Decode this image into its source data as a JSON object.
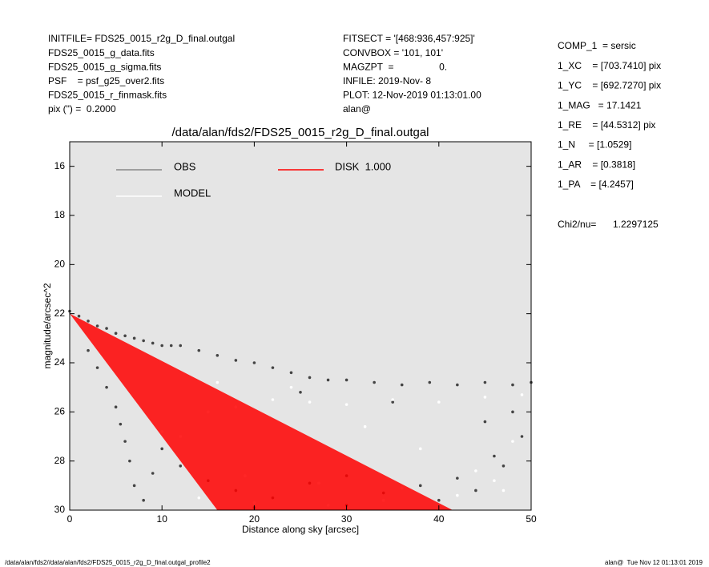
{
  "header": {
    "left": [
      "INITFILE= FDS25_0015_r2g_D_final.outgal",
      "FDS25_0015_g_data.fits",
      "FDS25_0015_g_sigma.fits",
      "PSF    = psf_g25_over2.fits",
      "FDS25_0015_r_finmask.fits",
      "pix (\") =  0.2000"
    ],
    "middle": [
      "FITSECT = '[468:936,457:925]'",
      "CONVBOX = '101, 101'",
      "MAGZPT  =                 0.",
      "INFILE: 2019-Nov- 8",
      "PLOT: 12-Nov-2019 01:13:01.00",
      "alan@"
    ],
    "right": [
      "COMP_1  = sersic",
      "1_XC    = [703.7410] pix",
      "1_YC    = [692.7270] pix",
      "1_MAG   = 17.1421",
      "1_RE    = [44.5312] pix",
      "1_N     = [1.0529]",
      "1_AR    = [0.3818]",
      "1_PA    = [4.2457]"
    ],
    "chi_label": "Chi2/nu=",
    "chi_value": "1.2297125"
  },
  "footer": {
    "left": "/data/alan/fds2//data/alan/fds2/FDS25_0015_r2g_D_final.outgal_profile2",
    "right": "alan@  Tue Nov 12 01:13:01 2019"
  },
  "chart_data": {
    "type": "scatter",
    "title": "/data/alan/fds2/FDS25_0015_r2g_D_final.outgal",
    "x_label": "Distance along sky [arcsec]",
    "y_label": "magnitude/arcsec^2",
    "xlim": [
      0,
      50
    ],
    "ylim": [
      30,
      15
    ],
    "xticks": [
      0,
      10,
      20,
      30,
      40,
      50
    ],
    "yticks": [
      16,
      18,
      20,
      22,
      24,
      26,
      28,
      30
    ],
    "background": "#e5e5e5",
    "series": [
      {
        "name": "OBS",
        "color": "#444444",
        "x": [
          0,
          1,
          2,
          3,
          4,
          5,
          6,
          7,
          8,
          9,
          10,
          11,
          12,
          14,
          16,
          18,
          20,
          22,
          24,
          26,
          28,
          30,
          33,
          36,
          39,
          42,
          45,
          48,
          50,
          2,
          3,
          4,
          5,
          5.5,
          6,
          6.5,
          7,
          8,
          9,
          10,
          12,
          15,
          18,
          22,
          26,
          30,
          34,
          38,
          42,
          46,
          49,
          25,
          35,
          45,
          40,
          30,
          20,
          47,
          44,
          48
        ],
        "values": [
          21.9,
          22.1,
          22.3,
          22.5,
          22.6,
          22.8,
          22.9,
          23.0,
          23.1,
          23.2,
          23.3,
          23.3,
          23.3,
          23.5,
          23.7,
          23.9,
          24.0,
          24.2,
          24.4,
          24.6,
          24.7,
          24.7,
          24.8,
          24.9,
          24.8,
          24.9,
          24.8,
          24.9,
          24.8,
          23.5,
          24.2,
          25.0,
          25.8,
          26.5,
          27.2,
          28.0,
          29.0,
          29.6,
          28.5,
          27.5,
          28.2,
          28.8,
          29.2,
          29.5,
          28.9,
          28.6,
          29.3,
          29.0,
          28.7,
          27.8,
          27.0,
          25.2,
          25.6,
          26.4,
          29.6,
          29.8,
          29.9,
          28.2,
          29.2,
          26.0
        ]
      },
      {
        "name": "MODEL",
        "color": "#ffffff",
        "x": [
          10,
          12,
          15,
          18,
          22,
          26,
          30,
          35,
          40,
          45,
          49,
          14,
          20,
          28,
          34,
          42,
          47,
          16,
          24,
          32,
          38,
          44,
          48,
          19,
          27,
          36,
          46
        ],
        "values": [
          26.8,
          27.0,
          26.0,
          25.8,
          25.5,
          25.6,
          25.7,
          25.5,
          25.6,
          25.4,
          25.3,
          29.5,
          29.7,
          29.8,
          29.6,
          29.4,
          29.2,
          24.8,
          25.0,
          26.6,
          27.5,
          28.4,
          27.2,
          28.6,
          28.9,
          29.1,
          28.8
        ]
      },
      {
        "name": "DISK  1.000",
        "color": "#ff0000",
        "fan": true,
        "x": [
          0,
          16,
          41.5
        ],
        "values": [
          22,
          30,
          30
        ]
      }
    ]
  }
}
